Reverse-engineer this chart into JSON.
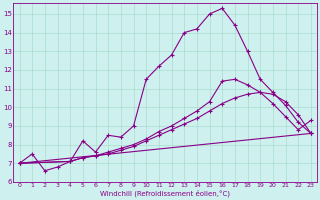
{
  "title": "",
  "xlabel": "Windchill (Refroidissement éolien,°C)",
  "ylabel": "",
  "bg_color": "#cef0ee",
  "line_color": "#880088",
  "grid_color": "#aaddcc",
  "xlim": [
    -0.5,
    23.5
  ],
  "ylim": [
    6,
    15.6
  ],
  "xticks": [
    0,
    1,
    2,
    3,
    4,
    5,
    6,
    7,
    8,
    9,
    10,
    11,
    12,
    13,
    14,
    15,
    16,
    17,
    18,
    19,
    20,
    21,
    22,
    23
  ],
  "yticks": [
    6,
    7,
    8,
    9,
    10,
    11,
    12,
    13,
    14,
    15
  ],
  "line1_x": [
    0,
    1,
    2,
    3,
    4,
    5,
    6,
    7,
    8,
    9,
    10,
    11,
    12,
    13,
    14,
    15,
    16,
    17,
    18,
    19,
    20,
    21,
    22,
    23
  ],
  "line1_y": [
    7.0,
    7.5,
    6.6,
    6.8,
    7.1,
    8.2,
    7.6,
    8.5,
    8.4,
    9.0,
    11.5,
    12.2,
    12.8,
    14.0,
    14.2,
    15.0,
    15.3,
    14.4,
    13.0,
    11.5,
    10.8,
    10.1,
    9.2,
    8.6
  ],
  "line2_x": [
    0,
    23
  ],
  "line2_y": [
    7.0,
    8.6
  ],
  "line3_x": [
    0,
    4,
    5,
    6,
    7,
    8,
    9,
    10,
    11,
    12,
    13,
    14,
    15,
    16,
    17,
    18,
    19,
    20,
    21,
    22,
    23
  ],
  "line3_y": [
    7.0,
    7.1,
    7.3,
    7.4,
    7.5,
    7.7,
    7.9,
    8.2,
    8.5,
    8.8,
    9.1,
    9.4,
    9.8,
    10.2,
    10.5,
    10.7,
    10.8,
    10.7,
    10.3,
    9.6,
    8.6
  ],
  "line4_x": [
    0,
    4,
    5,
    6,
    7,
    8,
    9,
    10,
    11,
    12,
    13,
    14,
    15,
    16,
    17,
    18,
    19,
    20,
    21,
    22,
    23
  ],
  "line4_y": [
    7.0,
    7.1,
    7.3,
    7.4,
    7.6,
    7.8,
    8.0,
    8.3,
    8.7,
    9.0,
    9.4,
    9.8,
    10.3,
    11.4,
    11.5,
    11.2,
    10.8,
    10.2,
    9.5,
    8.8,
    9.3
  ]
}
